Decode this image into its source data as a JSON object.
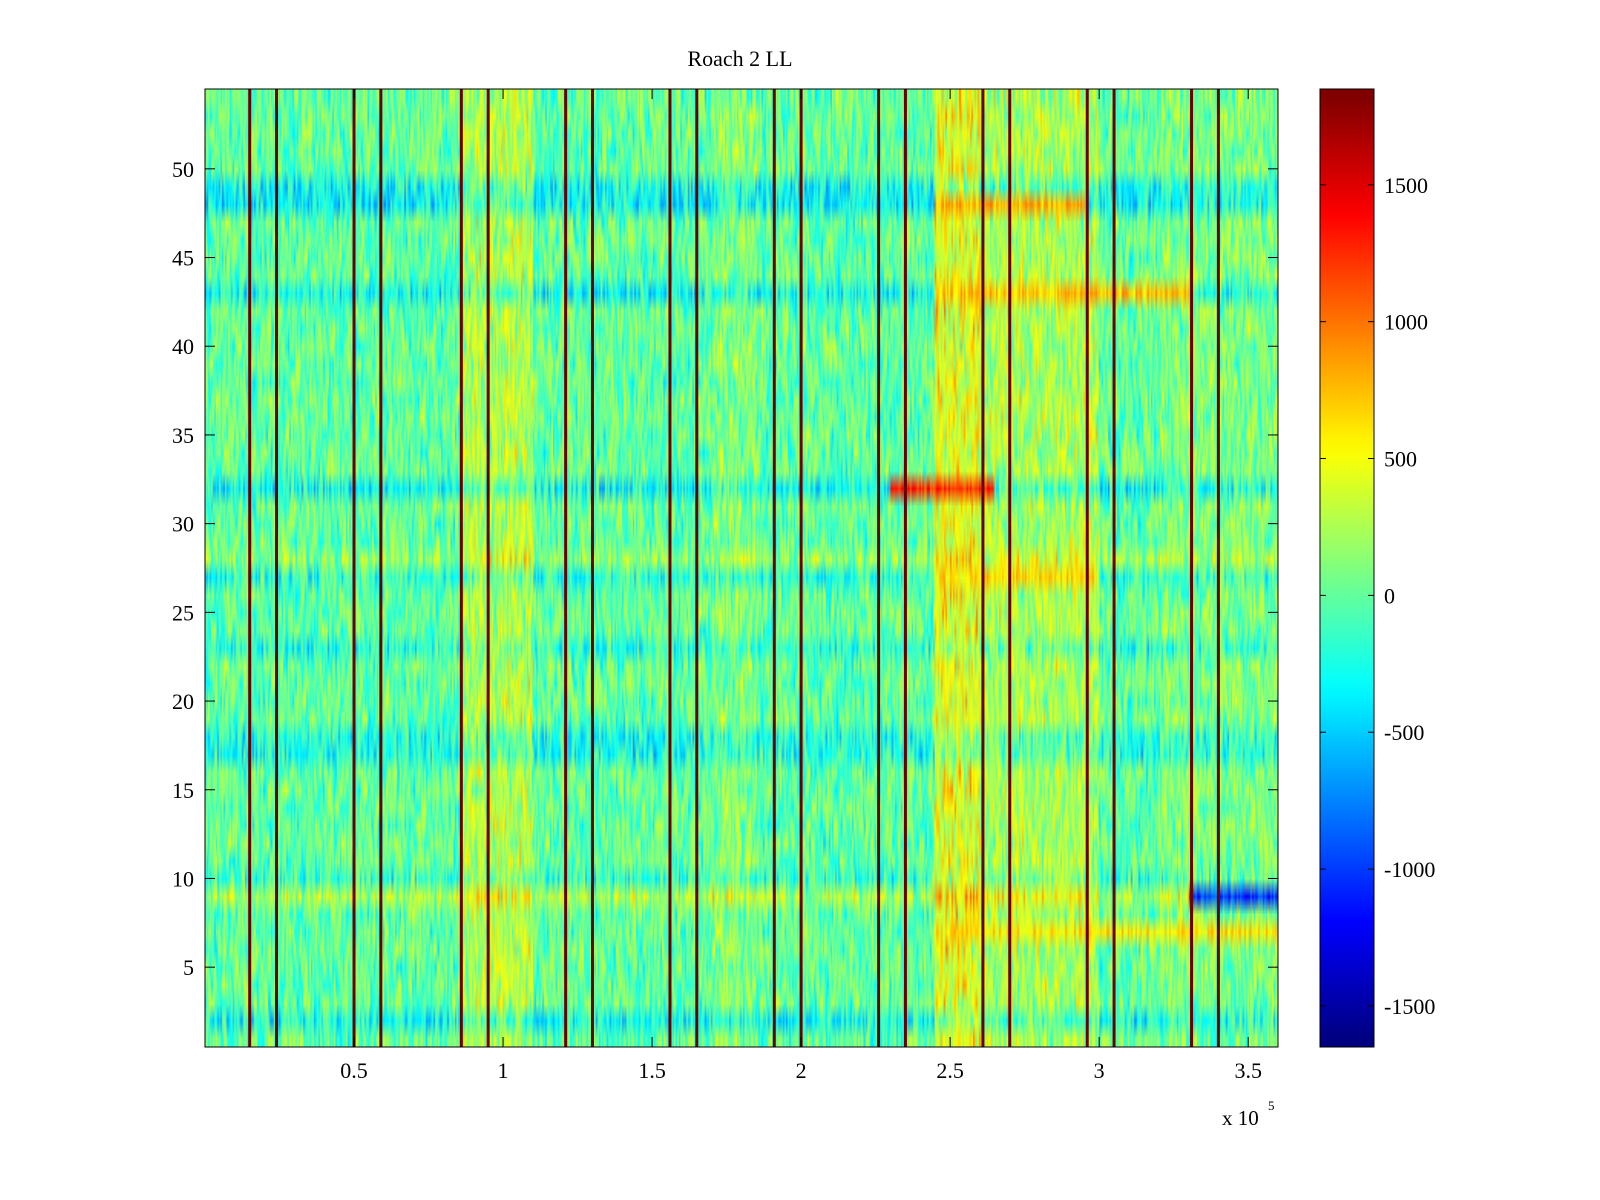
{
  "chart_data": {
    "type": "heatmap",
    "title": "Roach 2 LL",
    "xlabel": "",
    "ylabel": "",
    "x_exponent_label": "x 10",
    "x_exponent_sup": "5",
    "xlim": [
      0,
      3.6
    ],
    "ylim": [
      0.5,
      54.5
    ],
    "x_ticks": [
      0.5,
      1,
      1.5,
      2,
      2.5,
      3,
      3.5
    ],
    "x_tick_labels": [
      "0.5",
      "1",
      "1.5",
      "2",
      "2.5",
      "3",
      "3.5"
    ],
    "y_ticks": [
      5,
      10,
      15,
      20,
      25,
      30,
      35,
      40,
      45,
      50
    ],
    "y_tick_labels": [
      "5",
      "10",
      "15",
      "20",
      "25",
      "30",
      "35",
      "40",
      "45",
      "50"
    ],
    "colormap": "jet",
    "color_range": [
      -1650,
      1850
    ],
    "colorbar_ticks": [
      -1500,
      -1000,
      -500,
      0,
      500,
      1000,
      1500
    ],
    "colorbar_tick_labels": [
      "-1500",
      "-1000",
      "-500",
      "0",
      "500",
      "1000",
      "1500"
    ],
    "n_rows": 54,
    "dark_lines_x": [
      0.15,
      0.24,
      0.5,
      0.59,
      0.86,
      0.95,
      1.21,
      1.3,
      1.56,
      1.65,
      1.91,
      2.0,
      2.26,
      2.35,
      2.61,
      2.7,
      2.96,
      3.05,
      3.31,
      3.4
    ],
    "row_offsets": [
      {
        "row": 2,
        "offset": -300
      },
      {
        "row": 9,
        "offset": 250
      },
      {
        "row": 10,
        "offset": -150
      },
      {
        "row": 17,
        "offset": -250
      },
      {
        "row": 18,
        "offset": -250
      },
      {
        "row": 23,
        "offset": -200
      },
      {
        "row": 27,
        "offset": -200
      },
      {
        "row": 28,
        "offset": 150
      },
      {
        "row": 32,
        "offset": -300
      },
      {
        "row": 43,
        "offset": -300
      },
      {
        "row": 48,
        "offset": -350
      },
      {
        "row": 49,
        "offset": -300
      }
    ],
    "column_bands": [
      {
        "x": [
          0.86,
          1.1
        ],
        "offset": 280
      },
      {
        "x": [
          1.7,
          1.85
        ],
        "offset": 120
      },
      {
        "x": [
          2.45,
          2.6
        ],
        "offset": 450
      },
      {
        "x": [
          2.6,
          3.0
        ],
        "offset": 250
      },
      {
        "x": [
          3.2,
          3.6
        ],
        "offset": 100
      }
    ],
    "hot_spots": [
      {
        "row": 32,
        "x": [
          2.3,
          2.65
        ],
        "value": 1300
      },
      {
        "row": 48,
        "x": [
          2.45,
          2.95
        ],
        "value": 800
      },
      {
        "row": 43,
        "x": [
          2.45,
          3.3
        ],
        "value": 750
      },
      {
        "row": 9,
        "x": [
          3.3,
          3.6
        ],
        "value": -1000
      },
      {
        "row": 27,
        "x": [
          2.45,
          3.0
        ],
        "value": 650
      },
      {
        "row": 7,
        "x": [
          2.45,
          3.6
        ],
        "value": 600
      }
    ]
  }
}
